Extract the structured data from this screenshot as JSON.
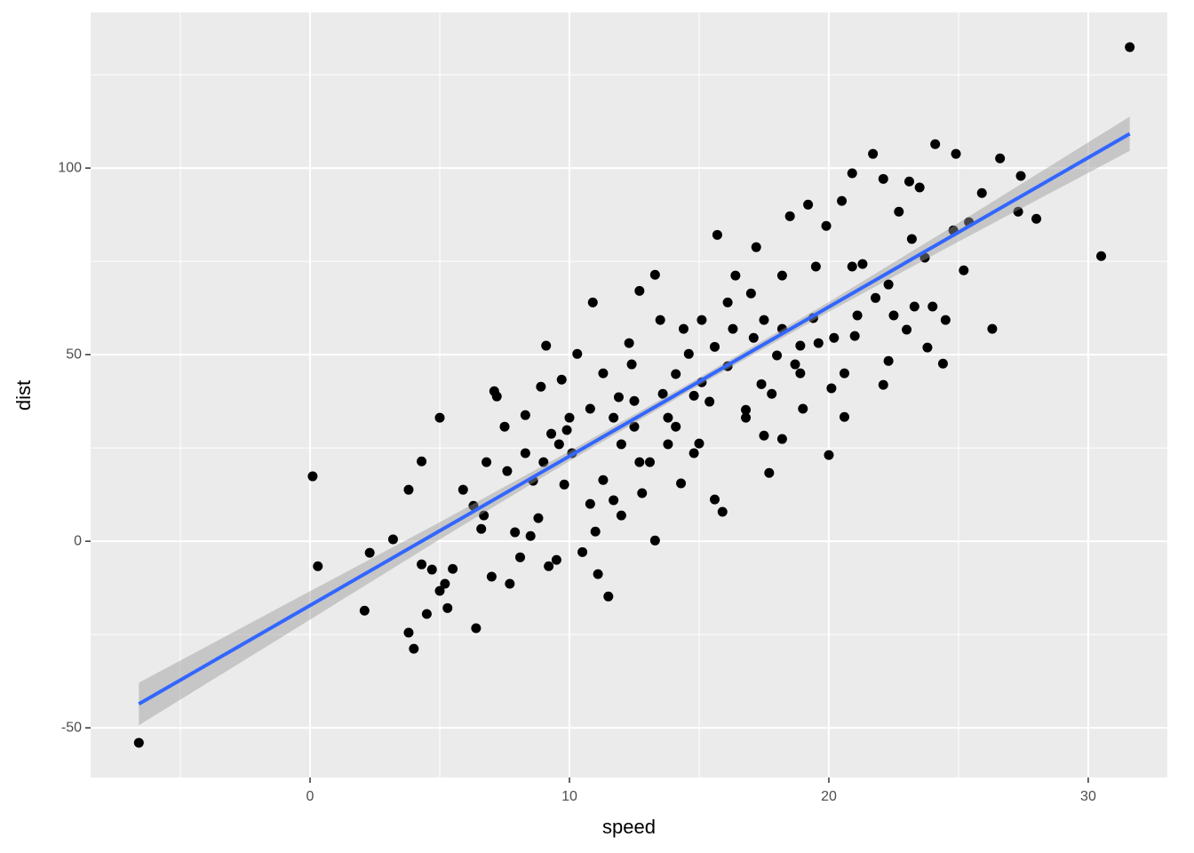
{
  "chart_data": {
    "type": "scatter",
    "x_label": "speed",
    "y_label": "dist",
    "xlim": [
      -8.46,
      33.05
    ],
    "ylim": [
      -63.3,
      141.7
    ],
    "xticks": [
      0,
      10,
      20,
      30
    ],
    "yticks": [
      -50,
      0,
      50,
      100
    ],
    "minor_xticks": [
      -5,
      5,
      15,
      25
    ],
    "minor_yticks": [
      -25,
      25,
      75,
      125
    ],
    "grid": true,
    "color": "#000000",
    "x": [
      -6.6,
      31.6,
      30.5,
      26.3,
      0.1,
      0.3,
      2.1,
      2.3,
      3.2,
      3.8,
      3.8,
      4.0,
      4.3,
      4.3,
      4.5,
      4.7,
      5.0,
      5.0,
      5.2,
      5.3,
      5.5,
      5.9,
      6.4,
      6.3,
      6.6,
      6.8,
      7.1,
      7.0,
      7.2,
      7.5,
      7.7,
      7.9,
      8.1,
      8.3,
      8.5,
      8.6,
      8.8,
      8.9,
      9.1,
      9.2,
      9.3,
      9.5,
      9.7,
      9.9,
      9.8,
      10.3,
      10.5,
      10.9,
      10.8,
      11.0,
      11.1,
      11.5,
      11.7,
      11.9,
      12.3,
      12.5,
      12.7,
      12.8,
      13.3,
      13.3,
      13.5,
      13.6,
      13.8,
      14.1,
      14.3,
      14.6,
      14.8,
      15.0,
      15.4,
      15.7,
      15.6,
      15.9,
      16.1,
      16.4,
      16.8,
      17.1,
      17.2,
      17.4,
      17.7,
      17.8,
      18.2,
      18.2,
      18.5,
      18.9,
      19.0,
      19.2,
      19.5,
      19.6,
      19.9,
      20.0,
      20.1,
      20.5,
      20.6,
      20.9,
      21.0,
      21.3,
      21.7,
      22.1,
      22.1,
      22.3,
      22.7,
      23.1,
      23.0,
      23.2,
      23.5,
      23.8,
      24.1,
      24.4,
      24.8,
      24.9,
      25.2,
      25.9,
      26.6,
      27.4,
      27.3,
      28.0,
      24.5,
      24.0,
      23.3,
      22.5,
      21.8,
      21.1,
      20.2,
      19.4,
      18.7,
      18.0,
      17.5,
      17.0,
      16.3,
      15.6,
      15.1,
      14.4,
      13.8,
      13.1,
      12.5,
      12.0,
      11.3,
      10.8,
      10.1,
      9.6,
      9.0,
      8.3,
      7.6,
      6.7,
      11.3,
      12.0,
      12.7,
      14.1,
      14.8,
      16.8,
      17.5,
      18.9,
      20.6,
      20.9,
      22.3,
      23.7,
      25.4,
      18.2,
      16.1,
      15.1,
      12.4,
      11.7,
      10.0
    ],
    "y": [
      -54.0,
      132.4,
      76.4,
      56.9,
      17.4,
      -6.7,
      -18.6,
      -3.1,
      0.5,
      13.8,
      -24.5,
      -28.8,
      21.4,
      -6.2,
      -19.5,
      -7.6,
      33.1,
      -13.3,
      -11.4,
      -17.9,
      -7.4,
      13.8,
      -23.3,
      9.5,
      3.3,
      21.2,
      40.2,
      -9.5,
      38.8,
      30.7,
      -11.4,
      2.4,
      -4.3,
      33.8,
      1.4,
      16.2,
      6.2,
      41.4,
      52.4,
      -6.7,
      28.8,
      -5.0,
      43.3,
      29.8,
      15.2,
      50.2,
      -2.9,
      64.0,
      10.0,
      2.6,
      -8.8,
      -14.8,
      11.0,
      38.6,
      53.1,
      37.6,
      67.1,
      12.9,
      0.2,
      71.4,
      59.3,
      39.5,
      26.0,
      44.8,
      15.5,
      50.2,
      39.0,
      26.2,
      37.4,
      82.1,
      11.2,
      7.9,
      46.9,
      71.2,
      35.2,
      54.5,
      78.8,
      42.1,
      18.3,
      39.5,
      56.9,
      27.4,
      87.1,
      52.4,
      35.5,
      90.2,
      73.6,
      53.1,
      84.5,
      23.1,
      41.0,
      91.2,
      33.3,
      98.6,
      55.0,
      74.3,
      103.8,
      97.1,
      41.9,
      48.3,
      88.3,
      96.4,
      56.7,
      81.0,
      94.8,
      51.9,
      106.4,
      47.6,
      83.3,
      103.8,
      72.6,
      93.3,
      102.6,
      97.9,
      88.3,
      86.4,
      59.3,
      62.9,
      62.9,
      60.5,
      65.2,
      60.5,
      54.5,
      59.8,
      47.4,
      49.8,
      59.3,
      66.4,
      56.9,
      52.1,
      42.6,
      56.9,
      33.1,
      21.2,
      30.7,
      26.0,
      45.0,
      35.5,
      23.6,
      26.0,
      21.2,
      23.6,
      18.8,
      6.9,
      16.4,
      6.9,
      21.2,
      30.7,
      23.6,
      33.1,
      28.3,
      45.0,
      45.0,
      73.6,
      68.8,
      76.0,
      85.5,
      71.2,
      64.0,
      59.3,
      47.4,
      33.1,
      33.1
    ],
    "smooth": {
      "color": "#3366ff",
      "band_color": "#999999",
      "x": [
        -6.6,
        0,
        5,
        10,
        15,
        20,
        25,
        31.6
      ],
      "y": [
        -43.6,
        -17.2,
        2.8,
        22.8,
        42.8,
        62.8,
        82.8,
        109.2
      ],
      "lower": [
        -49.3,
        -21.0,
        0.5,
        21.5,
        41.8,
        61.5,
        80.3,
        104.6
      ],
      "upper": [
        -37.9,
        -13.4,
        5.1,
        24.1,
        43.8,
        64.1,
        85.3,
        113.8
      ]
    }
  }
}
